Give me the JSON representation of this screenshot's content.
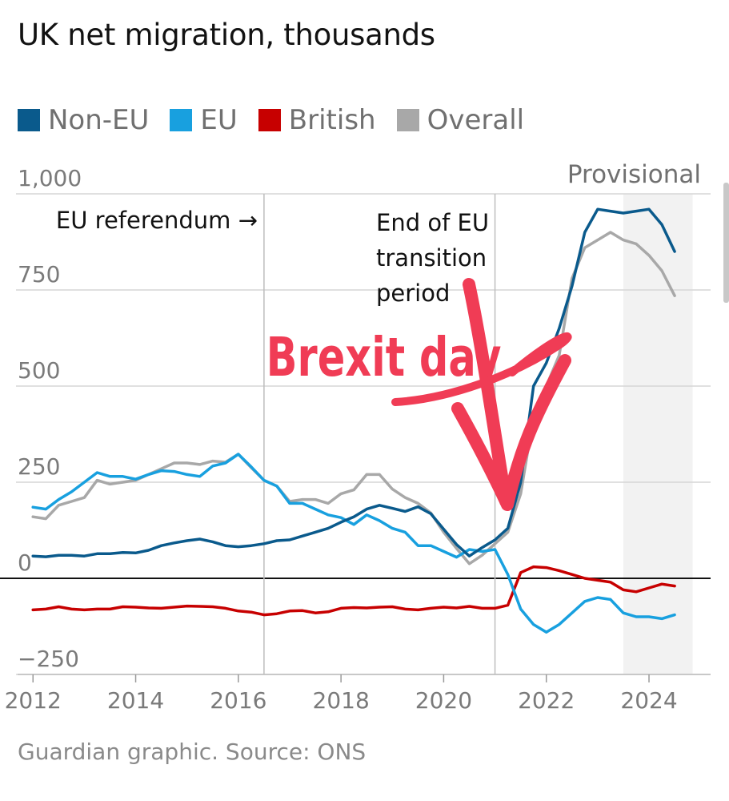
{
  "header": {
    "title": "UK net migration, thousands"
  },
  "footer": {
    "source": "Guardian graphic. Source: ONS"
  },
  "colors": {
    "non_eu": "#0a5a8c",
    "eu": "#18a0df",
    "british": "#c70000",
    "overall": "#a8a8a8",
    "overlay": "#f03c55"
  },
  "overlay_text": "Brexit day",
  "chart_data": {
    "type": "line",
    "title": "UK net migration, thousands",
    "xlabel": "",
    "ylabel": "",
    "xlim": [
      2011.7,
      2025.2
    ],
    "ylim": [
      -250,
      1000
    ],
    "yticks": [
      1000,
      750,
      500,
      250,
      0,
      -250
    ],
    "ytick_labels": [
      "1,000",
      "750",
      "500",
      "250",
      "0",
      "−250"
    ],
    "xticks": [
      2012,
      2014,
      2016,
      2018,
      2020,
      2022,
      2024
    ],
    "xtick_labels": [
      "2012",
      "2014",
      "2016",
      "2018",
      "2020",
      "2022",
      "2024"
    ],
    "grid": true,
    "legend_position": "top-left",
    "shaded_region": {
      "from": 2023.5,
      "to": 2024.85,
      "label": "Provisional"
    },
    "annotations": [
      {
        "x": 2016.5,
        "text": "EU referendum →"
      },
      {
        "x": 2021.0,
        "text": "End of EU transition period",
        "lines": [
          "End of EU",
          "transition",
          "period"
        ]
      }
    ],
    "series": [
      {
        "name": "Non-EU",
        "color": "#0a5a8c",
        "x": [
          2012.0,
          2012.25,
          2012.5,
          2012.75,
          2013.0,
          2013.25,
          2013.5,
          2013.75,
          2014.0,
          2014.25,
          2014.5,
          2014.75,
          2015.0,
          2015.25,
          2015.5,
          2015.75,
          2016.0,
          2016.25,
          2016.5,
          2016.75,
          2017.0,
          2017.25,
          2017.5,
          2017.75,
          2018.0,
          2018.25,
          2018.5,
          2018.75,
          2019.0,
          2019.25,
          2019.5,
          2019.75,
          2020.0,
          2020.25,
          2020.5,
          2020.75,
          2021.0,
          2021.25,
          2021.5,
          2021.75,
          2022.0,
          2022.25,
          2022.5,
          2022.75,
          2023.0,
          2023.25,
          2023.5,
          2023.75,
          2024.0,
          2024.25,
          2024.5
        ],
        "values": [
          58,
          56,
          60,
          60,
          58,
          64,
          64,
          67,
          66,
          73,
          85,
          92,
          98,
          102,
          95,
          85,
          82,
          85,
          90,
          98,
          100,
          110,
          120,
          130,
          146,
          160,
          180,
          190,
          182,
          174,
          186,
          168,
          128,
          88,
          58,
          80,
          100,
          130,
          250,
          500,
          560,
          650,
          760,
          900,
          960,
          955,
          950,
          955,
          960,
          920,
          850
        ]
      },
      {
        "name": "EU",
        "color": "#18a0df",
        "x": [
          2012.0,
          2012.25,
          2012.5,
          2012.75,
          2013.0,
          2013.25,
          2013.5,
          2013.75,
          2014.0,
          2014.25,
          2014.5,
          2014.75,
          2015.0,
          2015.25,
          2015.5,
          2015.75,
          2016.0,
          2016.25,
          2016.5,
          2016.75,
          2017.0,
          2017.25,
          2017.5,
          2017.75,
          2018.0,
          2018.25,
          2018.5,
          2018.75,
          2019.0,
          2019.25,
          2019.5,
          2019.75,
          2020.0,
          2020.25,
          2020.5,
          2020.75,
          2021.0,
          2021.25,
          2021.5,
          2021.75,
          2022.0,
          2022.25,
          2022.5,
          2022.75,
          2023.0,
          2023.25,
          2023.5,
          2023.75,
          2024.0,
          2024.25,
          2024.5
        ],
        "values": [
          185,
          180,
          205,
          225,
          250,
          275,
          265,
          265,
          258,
          270,
          280,
          278,
          270,
          265,
          292,
          300,
          323,
          290,
          255,
          240,
          195,
          195,
          180,
          165,
          158,
          140,
          165,
          150,
          130,
          120,
          85,
          85,
          70,
          55,
          75,
          70,
          75,
          10,
          -80,
          -120,
          -140,
          -120,
          -90,
          -60,
          -50,
          -55,
          -90,
          -100,
          -100,
          -105,
          -95
        ]
      },
      {
        "name": "British",
        "color": "#c70000",
        "x": [
          2012.0,
          2012.25,
          2012.5,
          2012.75,
          2013.0,
          2013.25,
          2013.5,
          2013.75,
          2014.0,
          2014.25,
          2014.5,
          2014.75,
          2015.0,
          2015.25,
          2015.5,
          2015.75,
          2016.0,
          2016.25,
          2016.5,
          2016.75,
          2017.0,
          2017.25,
          2017.5,
          2017.75,
          2018.0,
          2018.25,
          2018.5,
          2018.75,
          2019.0,
          2019.25,
          2019.5,
          2019.75,
          2020.0,
          2020.25,
          2020.5,
          2020.75,
          2021.0,
          2021.25,
          2021.5,
          2021.75,
          2022.0,
          2022.25,
          2022.5,
          2022.75,
          2023.0,
          2023.25,
          2023.5,
          2023.75,
          2024.0,
          2024.25,
          2024.5
        ],
        "values": [
          -82,
          -80,
          -74,
          -80,
          -82,
          -80,
          -80,
          -74,
          -75,
          -77,
          -78,
          -75,
          -72,
          -73,
          -74,
          -78,
          -85,
          -88,
          -95,
          -92,
          -85,
          -84,
          -90,
          -87,
          -78,
          -76,
          -77,
          -75,
          -74,
          -80,
          -82,
          -78,
          -75,
          -77,
          -73,
          -78,
          -78,
          -70,
          15,
          30,
          28,
          20,
          10,
          0,
          -5,
          -10,
          -30,
          -35,
          -25,
          -15,
          -20
        ]
      },
      {
        "name": "Overall",
        "color": "#a8a8a8",
        "x": [
          2012.0,
          2012.25,
          2012.5,
          2012.75,
          2013.0,
          2013.25,
          2013.5,
          2013.75,
          2014.0,
          2014.25,
          2014.5,
          2014.75,
          2015.0,
          2015.25,
          2015.5,
          2015.75,
          2016.0,
          2016.25,
          2016.5,
          2016.75,
          2017.0,
          2017.25,
          2017.5,
          2017.75,
          2018.0,
          2018.25,
          2018.5,
          2018.75,
          2019.0,
          2019.25,
          2019.5,
          2019.75,
          2020.0,
          2020.25,
          2020.5,
          2020.75,
          2021.0,
          2021.25,
          2021.5,
          2021.75,
          2022.0,
          2022.25,
          2022.5,
          2022.75,
          2023.0,
          2023.25,
          2023.5,
          2023.75,
          2024.0,
          2024.25,
          2024.5
        ],
        "values": [
          160,
          155,
          190,
          200,
          210,
          255,
          245,
          250,
          255,
          270,
          285,
          300,
          300,
          296,
          305,
          302,
          323,
          288,
          255,
          240,
          200,
          205,
          205,
          195,
          220,
          230,
          270,
          270,
          232,
          210,
          195,
          170,
          120,
          78,
          38,
          60,
          90,
          120,
          220,
          420,
          500,
          580,
          780,
          860,
          880,
          900,
          880,
          870,
          840,
          800,
          735
        ]
      }
    ]
  }
}
